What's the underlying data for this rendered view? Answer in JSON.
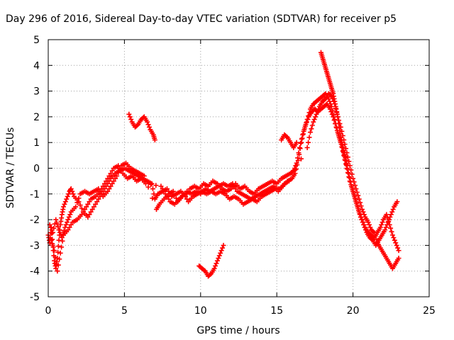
{
  "chart_data": {
    "type": "scatter",
    "title": "Day 296 of 2016, Sidereal Day-to-day VTEC variation (SDTVAR) for receiver p5",
    "xlabel": "GPS time / hours",
    "ylabel": "SDTVAR / TECUs",
    "xlim": [
      0,
      25
    ],
    "ylim": [
      -5,
      5
    ],
    "xticks": [
      "0",
      "5",
      "10",
      "15",
      "20",
      "25"
    ],
    "yticks": [
      "-5",
      "-4",
      "-3",
      "-2",
      "-1",
      "0",
      "1",
      "2",
      "3",
      "4",
      "5"
    ],
    "grid": true,
    "marker": "plus",
    "color": "#ff0000",
    "series": [
      {
        "points": [
          [
            0.0,
            -2.6
          ],
          [
            0.1,
            -2.9
          ],
          [
            0.2,
            -2.3
          ],
          [
            0.3,
            -3.0
          ],
          [
            0.4,
            -3.6
          ],
          [
            0.5,
            -3.9
          ],
          [
            0.6,
            -3.5
          ],
          [
            0.7,
            -2.8
          ],
          [
            0.8,
            -2.2
          ],
          [
            0.9,
            -1.8
          ],
          [
            1.0,
            -1.5
          ],
          [
            1.2,
            -1.2
          ],
          [
            1.4,
            -0.9
          ],
          [
            1.5,
            -0.8
          ],
          [
            1.7,
            -1.1
          ],
          [
            2.0,
            -1.3
          ],
          [
            2.3,
            -1.7
          ],
          [
            2.6,
            -1.9
          ],
          [
            2.9,
            -1.6
          ],
          [
            3.2,
            -1.3
          ],
          [
            3.5,
            -1.0
          ],
          [
            3.8,
            -0.7
          ],
          [
            4.1,
            -0.4
          ],
          [
            4.4,
            -0.2
          ],
          [
            4.7,
            -0.1
          ],
          [
            5.0,
            0.0
          ],
          [
            5.3,
            -0.1
          ],
          [
            5.6,
            -0.2
          ],
          [
            5.9,
            -0.3
          ],
          [
            6.2,
            -0.4
          ],
          [
            6.5,
            -0.5
          ],
          [
            6.8,
            -0.6
          ],
          [
            7.0,
            -1.2
          ],
          [
            7.2,
            -1.0
          ],
          [
            7.5,
            -0.9
          ],
          [
            7.8,
            -0.8
          ],
          [
            8.1,
            -1.1
          ],
          [
            8.4,
            -1.0
          ],
          [
            8.7,
            -0.9
          ],
          [
            9.0,
            -1.1
          ],
          [
            9.3,
            -0.8
          ],
          [
            9.6,
            -0.7
          ],
          [
            9.9,
            -0.8
          ],
          [
            10.2,
            -0.6
          ],
          [
            10.5,
            -0.7
          ],
          [
            10.8,
            -0.5
          ],
          [
            11.1,
            -0.6
          ],
          [
            11.4,
            -0.8
          ],
          [
            11.7,
            -0.9
          ],
          [
            12.0,
            -0.8
          ],
          [
            12.3,
            -0.6
          ],
          [
            12.6,
            -0.8
          ],
          [
            12.9,
            -0.7
          ],
          [
            13.2,
            -0.9
          ],
          [
            13.5,
            -1.0
          ],
          [
            13.8,
            -0.8
          ],
          [
            14.1,
            -0.7
          ],
          [
            14.4,
            -0.6
          ],
          [
            14.7,
            -0.5
          ],
          [
            15.0,
            -0.6
          ],
          [
            15.3,
            -0.4
          ],
          [
            15.6,
            -0.3
          ],
          [
            15.9,
            -0.2
          ],
          [
            16.1,
            -0.1
          ],
          [
            16.3,
            0.2
          ],
          [
            16.5,
            0.8
          ],
          [
            16.7,
            1.3
          ],
          [
            16.9,
            1.7
          ],
          [
            17.1,
            2.0
          ],
          [
            17.3,
            2.2
          ],
          [
            17.5,
            2.3
          ],
          [
            17.7,
            2.2
          ],
          [
            17.9,
            2.3
          ],
          [
            18.1,
            2.4
          ],
          [
            18.3,
            2.5
          ],
          [
            18.5,
            2.3
          ],
          [
            18.7,
            2.0
          ],
          [
            18.9,
            1.6
          ],
          [
            19.1,
            1.2
          ],
          [
            19.3,
            0.8
          ],
          [
            19.5,
            0.3
          ],
          [
            19.7,
            -0.2
          ],
          [
            19.9,
            -0.7
          ],
          [
            20.1,
            -1.1
          ],
          [
            20.3,
            -1.5
          ],
          [
            20.5,
            -1.9
          ],
          [
            20.7,
            -2.2
          ],
          [
            20.9,
            -2.5
          ],
          [
            21.1,
            -2.7
          ],
          [
            21.3,
            -2.8
          ],
          [
            21.5,
            -3.0
          ],
          [
            21.7,
            -2.8
          ],
          [
            21.9,
            -2.6
          ],
          [
            22.1,
            -2.4
          ],
          [
            22.3,
            -2.1
          ],
          [
            22.5,
            -1.8
          ],
          [
            22.7,
            -1.5
          ],
          [
            22.9,
            -1.3
          ]
        ]
      },
      {
        "points": [
          [
            0.1,
            -2.2
          ],
          [
            0.3,
            -2.5
          ],
          [
            0.5,
            -2.0
          ],
          [
            0.7,
            -2.4
          ],
          [
            0.9,
            -2.7
          ],
          [
            1.1,
            -2.3
          ],
          [
            1.3,
            -2.0
          ],
          [
            1.5,
            -1.7
          ],
          [
            1.8,
            -1.5
          ],
          [
            2.1,
            -1.0
          ],
          [
            2.4,
            -0.9
          ],
          [
            2.7,
            -1.0
          ],
          [
            3.0,
            -0.9
          ],
          [
            3.3,
            -0.8
          ],
          [
            3.6,
            -1.1
          ],
          [
            3.9,
            -0.9
          ],
          [
            4.2,
            -0.6
          ],
          [
            4.5,
            -0.3
          ],
          [
            4.8,
            0.1
          ],
          [
            5.1,
            0.2
          ],
          [
            5.4,
            0.0
          ],
          [
            5.7,
            -0.1
          ],
          [
            6.0,
            -0.2
          ],
          [
            6.3,
            -0.3
          ],
          [
            7.1,
            -1.6
          ],
          [
            7.3,
            -1.4
          ],
          [
            7.6,
            -1.2
          ],
          [
            7.9,
            -1.0
          ],
          [
            8.2,
            -0.9
          ],
          [
            8.5,
            -1.3
          ],
          [
            8.8,
            -1.1
          ],
          [
            9.1,
            -0.9
          ],
          [
            9.4,
            -1.0
          ],
          [
            9.7,
            -0.9
          ],
          [
            10.0,
            -1.0
          ],
          [
            10.3,
            -0.8
          ],
          [
            10.6,
            -0.9
          ],
          [
            10.9,
            -0.8
          ],
          [
            11.2,
            -0.7
          ],
          [
            11.5,
            -0.6
          ],
          [
            11.8,
            -0.7
          ],
          [
            12.1,
            -0.6
          ],
          [
            12.4,
            -0.9
          ],
          [
            12.7,
            -1.0
          ],
          [
            13.0,
            -1.1
          ],
          [
            13.3,
            -1.2
          ],
          [
            13.6,
            -1.1
          ],
          [
            13.9,
            -1.0
          ],
          [
            14.2,
            -0.9
          ],
          [
            14.5,
            -0.8
          ],
          [
            14.8,
            -0.7
          ],
          [
            15.1,
            -0.9
          ],
          [
            15.4,
            -0.7
          ],
          [
            15.7,
            -0.5
          ],
          [
            16.0,
            -0.4
          ],
          [
            16.2,
            -0.2
          ],
          [
            16.4,
            0.3
          ],
          [
            16.6,
            1.0
          ],
          [
            16.8,
            1.5
          ],
          [
            17.0,
            1.9
          ],
          [
            17.2,
            2.3
          ],
          [
            17.4,
            2.5
          ],
          [
            17.6,
            2.6
          ],
          [
            17.8,
            2.7
          ],
          [
            18.0,
            2.8
          ],
          [
            18.2,
            2.9
          ],
          [
            18.4,
            2.7
          ],
          [
            18.6,
            2.4
          ],
          [
            18.8,
            1.9
          ],
          [
            19.0,
            1.4
          ],
          [
            19.2,
            1.0
          ],
          [
            19.4,
            0.5
          ],
          [
            19.6,
            0.0
          ],
          [
            19.8,
            -0.5
          ],
          [
            20.0,
            -0.9
          ],
          [
            20.2,
            -1.3
          ],
          [
            20.4,
            -1.7
          ],
          [
            20.6,
            -2.0
          ],
          [
            20.8,
            -2.3
          ],
          [
            21.0,
            -2.5
          ],
          [
            21.2,
            -2.6
          ],
          [
            21.4,
            -2.7
          ],
          [
            21.6,
            -2.5
          ],
          [
            21.8,
            -2.3
          ],
          [
            22.0,
            -2.0
          ],
          [
            22.2,
            -1.8
          ],
          [
            22.4,
            -2.2
          ],
          [
            22.6,
            -2.6
          ],
          [
            22.8,
            -2.9
          ],
          [
            23.0,
            -3.2
          ]
        ]
      },
      {
        "points": [
          [
            0.2,
            -2.8
          ],
          [
            0.4,
            -3.2
          ],
          [
            0.6,
            -4.0
          ],
          [
            0.8,
            -3.3
          ],
          [
            1.0,
            -2.6
          ],
          [
            1.3,
            -2.4
          ],
          [
            1.6,
            -2.1
          ],
          [
            1.9,
            -2.0
          ],
          [
            2.2,
            -1.8
          ],
          [
            2.5,
            -1.5
          ],
          [
            2.8,
            -1.2
          ],
          [
            3.1,
            -1.1
          ],
          [
            3.4,
            -0.9
          ],
          [
            3.7,
            -0.6
          ],
          [
            4.0,
            -0.3
          ],
          [
            4.3,
            0.0
          ],
          [
            4.6,
            0.1
          ],
          [
            4.9,
            -0.2
          ],
          [
            5.2,
            -0.4
          ],
          [
            5.5,
            -0.3
          ],
          [
            5.8,
            -0.5
          ],
          [
            6.1,
            -0.4
          ],
          [
            6.4,
            -0.6
          ],
          [
            7.4,
            -0.7
          ],
          [
            7.7,
            -1.0
          ],
          [
            8.0,
            -1.3
          ],
          [
            8.3,
            -1.4
          ],
          [
            8.6,
            -1.2
          ],
          [
            8.9,
            -1.0
          ],
          [
            9.2,
            -1.3
          ],
          [
            9.5,
            -1.1
          ],
          [
            9.8,
            -1.0
          ],
          [
            10.1,
            -0.9
          ],
          [
            10.4,
            -1.0
          ],
          [
            10.7,
            -0.9
          ],
          [
            11.0,
            -1.0
          ],
          [
            11.3,
            -0.9
          ],
          [
            11.6,
            -1.0
          ],
          [
            11.9,
            -1.2
          ],
          [
            12.2,
            -1.1
          ],
          [
            12.5,
            -1.2
          ],
          [
            12.8,
            -1.4
          ],
          [
            13.1,
            -1.3
          ],
          [
            13.4,
            -1.2
          ],
          [
            13.7,
            -1.3
          ],
          [
            14.0,
            -1.1
          ],
          [
            14.3,
            -1.0
          ],
          [
            14.6,
            -0.9
          ],
          [
            14.9,
            -0.8
          ],
          [
            15.2,
            -0.8
          ],
          [
            15.5,
            -0.6
          ],
          [
            15.8,
            -0.5
          ],
          [
            17.0,
            0.8
          ],
          [
            17.2,
            1.4
          ],
          [
            17.4,
            1.8
          ],
          [
            17.6,
            2.1
          ],
          [
            17.8,
            2.4
          ],
          [
            18.0,
            2.6
          ],
          [
            18.2,
            2.7
          ],
          [
            18.4,
            2.9
          ],
          [
            18.6,
            2.8
          ],
          [
            18.8,
            2.5
          ],
          [
            19.0,
            2.0
          ],
          [
            19.2,
            1.6
          ],
          [
            19.4,
            1.1
          ],
          [
            19.6,
            0.6
          ],
          [
            19.8,
            0.1
          ],
          [
            20.0,
            -0.4
          ],
          [
            20.2,
            -0.8
          ],
          [
            20.4,
            -1.2
          ],
          [
            20.6,
            -1.6
          ],
          [
            20.8,
            -1.9
          ],
          [
            21.0,
            -2.1
          ],
          [
            21.2,
            -2.4
          ],
          [
            21.4,
            -2.5
          ],
          [
            21.6,
            -2.9
          ],
          [
            21.8,
            -3.1
          ],
          [
            22.0,
            -3.3
          ],
          [
            22.2,
            -3.5
          ],
          [
            22.4,
            -3.7
          ],
          [
            22.6,
            -3.9
          ],
          [
            22.8,
            -3.7
          ],
          [
            23.0,
            -3.5
          ]
        ]
      },
      {
        "points": [
          [
            5.3,
            2.1
          ],
          [
            5.5,
            1.8
          ],
          [
            5.7,
            1.6
          ],
          [
            5.9,
            1.7
          ],
          [
            6.1,
            1.9
          ],
          [
            6.3,
            2.0
          ],
          [
            6.5,
            1.8
          ],
          [
            6.7,
            1.5
          ],
          [
            6.9,
            1.3
          ],
          [
            7.0,
            1.1
          ]
        ]
      },
      {
        "points": [
          [
            9.9,
            -3.8
          ],
          [
            10.1,
            -3.9
          ],
          [
            10.3,
            -4.0
          ],
          [
            10.5,
            -4.2
          ],
          [
            10.7,
            -4.1
          ],
          [
            10.9,
            -3.9
          ],
          [
            11.1,
            -3.6
          ],
          [
            11.3,
            -3.3
          ],
          [
            11.5,
            -3.0
          ]
        ]
      },
      {
        "points": [
          [
            15.3,
            1.1
          ],
          [
            15.5,
            1.3
          ],
          [
            15.7,
            1.2
          ],
          [
            15.9,
            1.0
          ],
          [
            16.1,
            0.8
          ],
          [
            16.3,
            1.0
          ]
        ]
      },
      {
        "points": [
          [
            17.9,
            4.5
          ],
          [
            18.0,
            4.3
          ],
          [
            18.1,
            4.1
          ],
          [
            18.2,
            3.9
          ],
          [
            18.3,
            3.7
          ],
          [
            18.4,
            3.5
          ],
          [
            18.5,
            3.3
          ],
          [
            18.6,
            3.1
          ],
          [
            18.7,
            2.9
          ],
          [
            18.8,
            2.6
          ],
          [
            18.9,
            2.3
          ],
          [
            19.0,
            2.0
          ],
          [
            19.1,
            1.6
          ],
          [
            19.2,
            1.2
          ],
          [
            19.3,
            0.9
          ],
          [
            19.4,
            0.6
          ],
          [
            19.5,
            0.4
          ],
          [
            19.6,
            0.1
          ]
        ]
      }
    ]
  }
}
